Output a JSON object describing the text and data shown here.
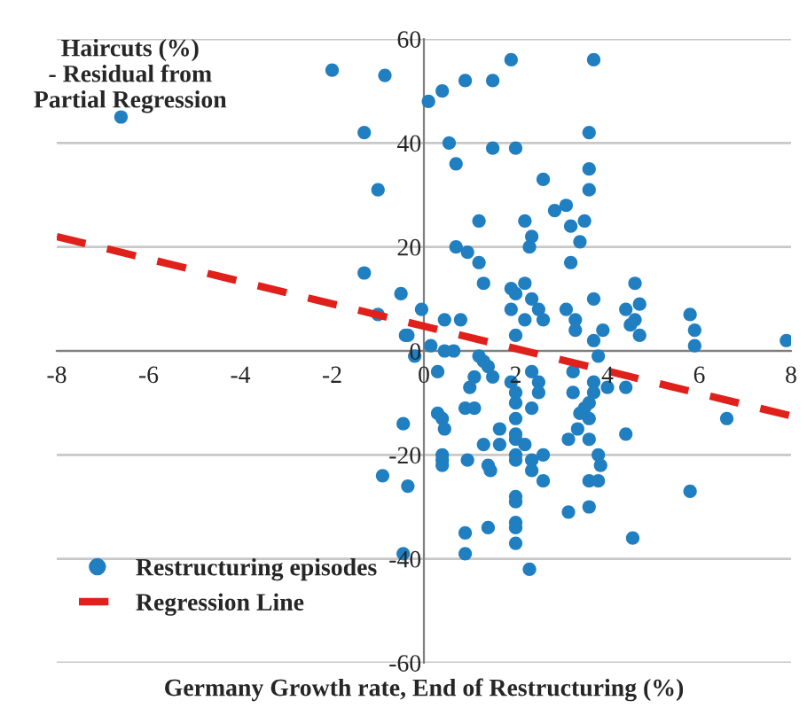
{
  "chart_data": {
    "type": "scatter",
    "xlabel": "Germany Growth rate, End of Restructuring (%)",
    "ylabel": "Haircuts (%)\n- Residual from\nPartial Regression",
    "xlim": [
      -8,
      8
    ],
    "xticks": [
      -8,
      -6,
      -4,
      -2,
      0,
      2,
      4,
      6,
      8
    ],
    "ylim": [
      -60,
      60
    ],
    "yticks": [
      -60,
      -40,
      -20,
      0,
      20,
      40,
      60
    ],
    "grid": "y",
    "legend": "bottom left",
    "marker": "circle",
    "series": [
      {
        "name": "Restructuring episodes",
        "color": "#1f7fc0",
        "x": [
          -6.6,
          -2.0,
          -0.85,
          -1.3,
          -1.0,
          -1.3,
          -0.5,
          -1.0,
          -0.4,
          0.1,
          0.4,
          0.9,
          1.5,
          1.9,
          3.7,
          0.55,
          0.7,
          1.5,
          2.0,
          3.6,
          3.6,
          3.6,
          2.6,
          2.85,
          3.1,
          3.2,
          3.4,
          3.5,
          1.2,
          2.2,
          2.35,
          2.3,
          0.7,
          0.95,
          1.2,
          3.2,
          1.3,
          1.9,
          2.2,
          2.0,
          2.35,
          -0.05,
          0.45,
          0.8,
          1.9,
          2.5,
          2.6,
          2.2,
          2.0,
          3.1,
          3.3,
          3.3,
          3.7,
          3.7,
          3.9,
          4.4,
          4.5,
          4.6,
          4.6,
          4.7,
          4.7,
          5.8,
          5.9,
          5.9,
          7.9,
          -0.35,
          0.15,
          0.45,
          0.65,
          -0.2,
          1.2,
          3.8,
          1.3,
          1.4,
          1.5,
          0.3,
          1.1,
          1.0,
          1.9,
          2.0,
          2.0,
          2.35,
          2.5,
          2.5,
          2.35,
          3.25,
          3.25,
          3.7,
          3.7,
          3.6,
          3.5,
          3.4,
          3.6,
          4.0,
          4.4,
          0.3,
          0.4,
          0.45,
          -0.45,
          0.9,
          1.1,
          2.0,
          1.65,
          2.0,
          1.3,
          1.65,
          2.0,
          2.2,
          2.0,
          2.0,
          2.35,
          2.6,
          2.35,
          2.6,
          3.35,
          3.15,
          3.6,
          3.8,
          3.85,
          3.6,
          3.8,
          4.4,
          0.4,
          0.4,
          0.4,
          0.95,
          1.4,
          1.45,
          -0.35,
          2.0,
          2.0,
          2.0,
          2.0,
          2.0,
          2.3,
          0.9,
          0.9,
          1.4,
          3.15,
          3.6,
          4.55,
          5.8,
          6.6,
          -0.9,
          -0.45
        ],
        "values": [
          45,
          54,
          53,
          42,
          31,
          15,
          11,
          7,
          3,
          48,
          50,
          52,
          52,
          56,
          56,
          40,
          36,
          39,
          39,
          42,
          35,
          31,
          33,
          27,
          28,
          24,
          21,
          25,
          25,
          25,
          22,
          20,
          20,
          19,
          17,
          17,
          13,
          12,
          13,
          11,
          10,
          8,
          6,
          6,
          8,
          8,
          6,
          6,
          3,
          8,
          6,
          4,
          10,
          2,
          4,
          8,
          5,
          6,
          13,
          9,
          3,
          7,
          4,
          1,
          2,
          3,
          1,
          0,
          0,
          -1,
          -1,
          -1,
          -2,
          -3,
          -5,
          -4,
          -5,
          -7,
          -6,
          -8,
          -10,
          -4,
          -6,
          -8,
          -11,
          -4,
          -8,
          -6,
          -8,
          -10,
          -11,
          -12,
          -13,
          -7,
          -7,
          -12,
          -13,
          -15,
          -14,
          -11,
          -11,
          -13,
          -15,
          -16,
          -18,
          -18,
          -17,
          -18,
          -20,
          -21,
          -21,
          -20,
          -23,
          -25,
          -15,
          -17,
          -17,
          -20,
          -22,
          -25,
          -25,
          -16,
          -20,
          -21,
          -22,
          -21,
          -22,
          -23,
          -26,
          -28,
          -29,
          -33,
          -34,
          -37,
          -42,
          -35,
          -39,
          -34,
          -31,
          -30,
          -36,
          -27,
          -13,
          -24,
          -39
        ]
      },
      {
        "name": "Regression Line",
        "type": "line",
        "color": "#e0201b",
        "line_style": "dashed",
        "marker": "none",
        "x": [
          -8,
          8
        ],
        "values": [
          22,
          -12.5
        ]
      }
    ]
  }
}
